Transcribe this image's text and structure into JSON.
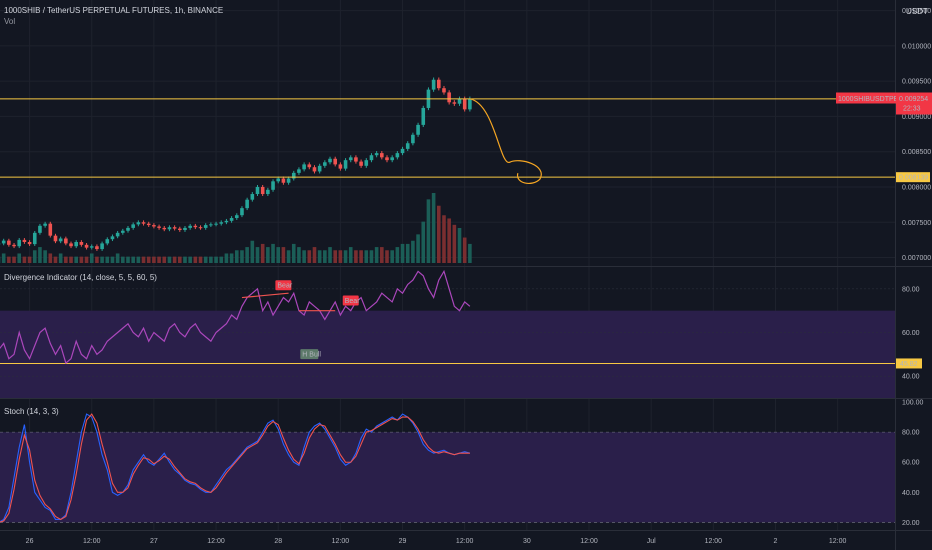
{
  "header": {
    "symbol_title": "1000SHIB / TetherUS PERPETUAL FUTURES, 1h, BINANCE",
    "vol_label": "Vol",
    "currency": "USDT"
  },
  "colors": {
    "background": "#131722",
    "up": "#26a69a",
    "down": "#ef5350",
    "level_line": "#f7c843",
    "drawing": "#f5a623",
    "rsi_line": "#ab47bc",
    "rsi_band": "#2a1f4a",
    "stoch_k": "#2962ff",
    "stoch_d": "#ef5350",
    "price_tag": "#f23645"
  },
  "chart_data": [
    {
      "type": "candlestick",
      "title": "1000SHIB / TetherUS PERPETUAL FUTURES, 1h, BINANCE",
      "y_ticks": [
        "0.010500",
        "0.010000",
        "0.009500",
        "0.009000",
        "0.008500",
        "0.008000",
        "0.007500",
        "0.007000"
      ],
      "ylim": [
        0.00688,
        0.01065
      ],
      "x_ticks": [
        "26",
        "12:00",
        "27",
        "12:00",
        "28",
        "12:00",
        "29",
        "12:00",
        "30",
        "12:00",
        "Jul",
        "12:00",
        "2",
        "12:00"
      ],
      "x_tick_bar_index": [
        6,
        18,
        30,
        42,
        54,
        66,
        78,
        90,
        102,
        114,
        126,
        138,
        150,
        162
      ],
      "levels": [
        {
          "value": 0.009249,
          "label": "0.009249"
        },
        {
          "value": 0.008139,
          "label": "0.008139"
        }
      ],
      "last_price": {
        "label": "1000SHIBUSDTPERP",
        "value": "0.009254",
        "countdown": "22:33"
      },
      "volume_label": "Vol",
      "closes": [
        0.0072,
        0.00724,
        0.00718,
        0.00716,
        0.00725,
        0.00722,
        0.00719,
        0.00735,
        0.00745,
        0.00748,
        0.00731,
        0.00723,
        0.00727,
        0.0072,
        0.00716,
        0.00722,
        0.00718,
        0.00714,
        0.00716,
        0.00712,
        0.0072,
        0.00726,
        0.0073,
        0.00735,
        0.00738,
        0.00742,
        0.00747,
        0.0075,
        0.00748,
        0.00746,
        0.00744,
        0.00742,
        0.0074,
        0.00743,
        0.00741,
        0.00739,
        0.00742,
        0.00745,
        0.00743,
        0.00742,
        0.00746,
        0.00747,
        0.00748,
        0.0075,
        0.00752,
        0.00756,
        0.0076,
        0.0077,
        0.00782,
        0.0079,
        0.008,
        0.0079,
        0.00796,
        0.00808,
        0.00812,
        0.00806,
        0.00812,
        0.0082,
        0.00825,
        0.00832,
        0.00828,
        0.00822,
        0.0083,
        0.00835,
        0.0084,
        0.00832,
        0.00826,
        0.00838,
        0.00842,
        0.00836,
        0.0083,
        0.00838,
        0.00845,
        0.00848,
        0.00842,
        0.00838,
        0.00842,
        0.00848,
        0.00854,
        0.00862,
        0.00874,
        0.00888,
        0.00912,
        0.00938,
        0.00952,
        0.0094,
        0.00934,
        0.0092,
        0.00918,
        0.00925,
        0.0091,
        0.00925
      ],
      "volumes": [
        2,
        3,
        2,
        2,
        3,
        2,
        2,
        4,
        5,
        4,
        3,
        2,
        3,
        2,
        2,
        2,
        2,
        2,
        3,
        2,
        2,
        2,
        2,
        3,
        2,
        2,
        2,
        2,
        2,
        2,
        2,
        2,
        2,
        2,
        2,
        2,
        2,
        2,
        2,
        2,
        2,
        2,
        2,
        2,
        3,
        3,
        4,
        4,
        5,
        7,
        5,
        6,
        5,
        6,
        5,
        5,
        4,
        6,
        5,
        4,
        4,
        5,
        4,
        4,
        5,
        4,
        4,
        4,
        5,
        4,
        4,
        4,
        4,
        5,
        5,
        4,
        4,
        5,
        6,
        6,
        7,
        9,
        13,
        20,
        22,
        18,
        15,
        14,
        12,
        11,
        8,
        6
      ],
      "drawn_projection": "curve from last candle down to 0.008139 with loop"
    },
    {
      "type": "line",
      "title": "Divergence Indicator (14, close, 5, 5, 60, 5)",
      "y_ticks": [
        "80.00",
        "60.00",
        "40.00"
      ],
      "ylim": [
        30,
        90
      ],
      "band": [
        70,
        30
      ],
      "hline": {
        "value": 45.82,
        "label": "45.82"
      },
      "annotations": [
        {
          "label": "Bear",
          "bar": 51,
          "value": 78
        },
        {
          "label": "Bear",
          "bar": 64,
          "value": 71
        },
        {
          "label": "H Bull",
          "bar": 60,
          "value": 51
        }
      ],
      "values": [
        52,
        55,
        48,
        50,
        60,
        52,
        48,
        54,
        60,
        62,
        55,
        50,
        54,
        46,
        48,
        56,
        50,
        48,
        54,
        50,
        52,
        56,
        58,
        60,
        62,
        64,
        60,
        58,
        62,
        56,
        60,
        58,
        56,
        62,
        64,
        60,
        58,
        62,
        64,
        60,
        58,
        56,
        60,
        62,
        64,
        68,
        66,
        72,
        76,
        78,
        80,
        70,
        74,
        68,
        72,
        76,
        74,
        78,
        70,
        68,
        74,
        72,
        70,
        66,
        70,
        74,
        68,
        72,
        70,
        74,
        76,
        70,
        72,
        74,
        78,
        76,
        74,
        80,
        78,
        82,
        84,
        88,
        86,
        80,
        76,
        84,
        88,
        80,
        72,
        70,
        74,
        72
      ]
    },
    {
      "type": "line",
      "title": "Stoch (14, 3, 3)",
      "y_ticks": [
        "100.00",
        "80.00",
        "60.00",
        "40.00",
        "20.00"
      ],
      "ylim": [
        15,
        102
      ],
      "band": [
        80,
        20
      ],
      "series": [
        {
          "name": "",
          "values": [
            20,
            22,
            30,
            50,
            70,
            85,
            60,
            40,
            35,
            30,
            28,
            22,
            22,
            25,
            40,
            60,
            80,
            92,
            90,
            80,
            65,
            55,
            40,
            38,
            40,
            45,
            55,
            60,
            65,
            60,
            58,
            62,
            66,
            60,
            55,
            52,
            48,
            46,
            45,
            42,
            40,
            40,
            45,
            50,
            55,
            58,
            62,
            66,
            70,
            72,
            74,
            80,
            86,
            88,
            82,
            72,
            65,
            60,
            58,
            70,
            80,
            84,
            86,
            82,
            76,
            70,
            62,
            58,
            60,
            66,
            76,
            82,
            80,
            84,
            86,
            88,
            90,
            88,
            92,
            90,
            86,
            80,
            72,
            68,
            66,
            67,
            68,
            66,
            65,
            66,
            67,
            66
          ]
        },
        {
          "name": "",
          "values": [
            20,
            21,
            26,
            42,
            62,
            78,
            68,
            48,
            38,
            32,
            29,
            24,
            22,
            24,
            35,
            52,
            72,
            88,
            92,
            86,
            72,
            60,
            46,
            40,
            40,
            43,
            52,
            58,
            63,
            62,
            59,
            61,
            64,
            62,
            57,
            53,
            49,
            47,
            46,
            43,
            41,
            40,
            43,
            48,
            53,
            57,
            61,
            65,
            69,
            71,
            73,
            78,
            84,
            87,
            85,
            76,
            68,
            62,
            59,
            66,
            76,
            82,
            85,
            84,
            78,
            72,
            65,
            60,
            60,
            64,
            72,
            80,
            81,
            83,
            85,
            87,
            89,
            88,
            90,
            90,
            87,
            82,
            75,
            70,
            67,
            66,
            67,
            66,
            65,
            66,
            66,
            66
          ]
        }
      ]
    }
  ]
}
